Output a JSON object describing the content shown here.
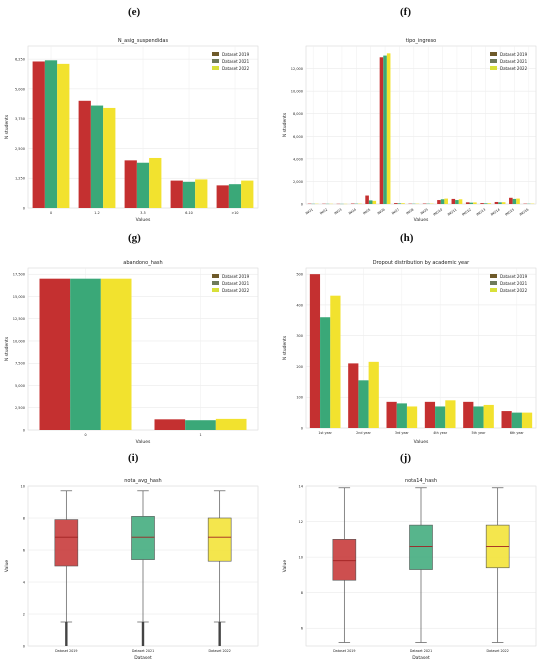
{
  "panel_labels": [
    "(e)",
    "(f)",
    "(g)",
    "(h)",
    "(i)",
    "(j)"
  ],
  "colors": {
    "y2019": "#c43030",
    "y2021": "#3aa878",
    "y2022": "#f2e22e",
    "leg2019": "#6e5a2a",
    "leg2021": "#6e7a5a",
    "leg2022": "#d8e03a"
  },
  "chart_data": [
    {
      "type": "bar",
      "title": "N_asig_suspendidas",
      "xlabel": "Values",
      "ylabel": "N students",
      "categories": [
        "0",
        "1-2",
        "3-5",
        "6-10",
        ">10"
      ],
      "series": [
        {
          "name": "Dataset 2019",
          "values": [
            6150,
            4500,
            2000,
            1150,
            950
          ]
        },
        {
          "name": "Dataset 2021",
          "values": [
            6200,
            4300,
            1900,
            1100,
            1000
          ]
        },
        {
          "name": "Dataset 2022",
          "values": [
            6050,
            4200,
            2100,
            1200,
            1150
          ]
        }
      ],
      "ylim": [
        0,
        6800
      ],
      "yticks": [
        0,
        1250,
        2500,
        3750,
        5000,
        6250
      ],
      "ytick_labels": [
        "0",
        "1,250",
        "2,500",
        "3,750",
        "5,000",
        "6,250"
      ],
      "legend": "top-right",
      "grid": true
    },
    {
      "type": "bar",
      "title": "tipo_ingreso",
      "xlabel": "Values",
      "ylabel": "N students",
      "categories": [
        "ING1",
        "ING2",
        "ING3",
        "ING4",
        "ING5",
        "ING6",
        "ING7",
        "ING8",
        "ING9",
        "ING10",
        "ING11",
        "ING12",
        "ING13",
        "ING14",
        "ING15",
        "ING16"
      ],
      "series": [
        {
          "name": "Dataset 2019",
          "values": [
            30,
            25,
            20,
            40,
            750,
            13000,
            80,
            30,
            40,
            350,
            450,
            150,
            80,
            180,
            550,
            30
          ]
        },
        {
          "name": "Dataset 2021",
          "values": [
            20,
            20,
            15,
            30,
            320,
            13150,
            60,
            25,
            30,
            420,
            350,
            120,
            60,
            150,
            450,
            25
          ]
        },
        {
          "name": "Dataset 2022",
          "values": [
            25,
            20,
            15,
            35,
            280,
            13350,
            70,
            30,
            35,
            480,
            420,
            140,
            70,
            160,
            480,
            30
          ]
        }
      ],
      "ylim": [
        0,
        14000
      ],
      "yticks": [
        0,
        2000,
        4000,
        6000,
        8000,
        10000,
        12000
      ],
      "ytick_labels": [
        "0",
        "2,000",
        "4,000",
        "6,000",
        "8,000",
        "10,000",
        "12,000"
      ],
      "legend": "top-right",
      "grid": true
    },
    {
      "type": "bar",
      "title": "abandono_hash",
      "xlabel": "Values",
      "ylabel": "N students",
      "categories": [
        "0",
        "1"
      ],
      "series": [
        {
          "name": "Dataset 2019",
          "values": [
            17000,
            1200
          ]
        },
        {
          "name": "Dataset 2021",
          "values": [
            17000,
            1100
          ]
        },
        {
          "name": "Dataset 2022",
          "values": [
            17000,
            1250
          ]
        }
      ],
      "ylim": [
        0,
        18200
      ],
      "yticks": [
        0,
        2500,
        5000,
        7500,
        10000,
        12500,
        15000,
        17500
      ],
      "ytick_labels": [
        "0",
        "2,500",
        "5,000",
        "7,500",
        "10,000",
        "12,500",
        "15,000",
        "17,500"
      ],
      "legend": "top-right",
      "grid": true
    },
    {
      "type": "bar",
      "title": "Dropout distribution by academic year",
      "xlabel": "Values",
      "ylabel": "N students",
      "categories": [
        "1st year",
        "2nd year",
        "3rd year",
        "4th year",
        "5th year",
        "6th year"
      ],
      "series": [
        {
          "name": "Dataset 2019",
          "values": [
            500,
            210,
            85,
            85,
            85,
            55
          ]
        },
        {
          "name": "Dataset 2021",
          "values": [
            360,
            155,
            80,
            70,
            70,
            50
          ]
        },
        {
          "name": "Dataset 2022",
          "values": [
            430,
            215,
            70,
            90,
            75,
            50
          ]
        }
      ],
      "ylim": [
        0,
        520
      ],
      "yticks": [
        0,
        100,
        200,
        300,
        400,
        500
      ],
      "ytick_labels": [
        "0",
        "100",
        "200",
        "300",
        "400",
        "500"
      ],
      "legend": "top-right",
      "grid": true
    },
    {
      "type": "box",
      "title": "nota_avg_hash",
      "xlabel": "Dataset",
      "ylabel": "Value",
      "categories": [
        "Dataset 2019",
        "Dataset 2021",
        "Dataset 2022"
      ],
      "boxes": [
        {
          "whislo": 1.5,
          "q1": 5.0,
          "med": 6.8,
          "q3": 7.9,
          "whishi": 9.7,
          "outliers_range": [
            0,
            1.5
          ]
        },
        {
          "whislo": 1.5,
          "q1": 5.4,
          "med": 6.8,
          "q3": 8.1,
          "whishi": 9.7,
          "outliers_range": [
            0,
            1.5
          ]
        },
        {
          "whislo": 1.5,
          "q1": 5.3,
          "med": 6.8,
          "q3": 8.0,
          "whishi": 9.7,
          "outliers_range": [
            0,
            1.5
          ]
        }
      ],
      "ylim": [
        0,
        10
      ],
      "yticks": [
        0,
        2,
        4,
        6,
        8,
        10
      ],
      "ytick_labels": [
        "0",
        "2",
        "4",
        "6",
        "8",
        "10"
      ],
      "grid": true
    },
    {
      "type": "box",
      "title": "nota14_hash",
      "xlabel": "Dataset",
      "ylabel": "Value",
      "categories": [
        "Dataset 2019",
        "Dataset 2021",
        "Dataset 2022"
      ],
      "boxes": [
        {
          "whislo": 5.2,
          "q1": 8.7,
          "med": 9.8,
          "q3": 11.0,
          "whishi": 13.9
        },
        {
          "whislo": 5.2,
          "q1": 9.3,
          "med": 10.6,
          "q3": 11.8,
          "whishi": 13.9
        },
        {
          "whislo": 5.2,
          "q1": 9.4,
          "med": 10.6,
          "q3": 11.8,
          "whishi": 13.9
        }
      ],
      "ylim": [
        5,
        14
      ],
      "yticks": [
        6,
        8,
        10,
        12,
        14
      ],
      "ytick_labels": [
        "6",
        "8",
        "10",
        "12",
        "14"
      ],
      "grid": true
    }
  ]
}
